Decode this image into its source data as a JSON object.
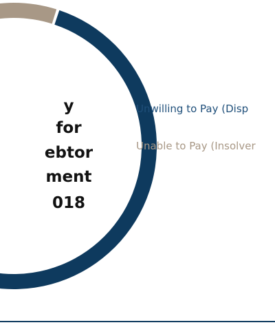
{
  "chart_data": {
    "type": "pie",
    "variant": "donut",
    "center_text": [
      "y",
      "for",
      "ebtor",
      "ment",
      "018"
    ],
    "series": [
      {
        "name": "Unwilling to Pay (Disp",
        "value": 89,
        "color": "#0e3a5e"
      },
      {
        "name": "Unable to Pay (Insolver",
        "value": 11,
        "color": "#a89886"
      }
    ],
    "legend_position": "right",
    "legend_colors": [
      "#1f4f7a",
      "#a89886"
    ]
  }
}
